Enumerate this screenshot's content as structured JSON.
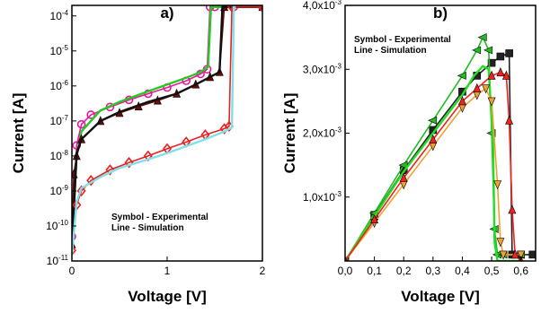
{
  "chart_data": [
    {
      "panel": "a)",
      "type": "line",
      "title": "a)",
      "xlabel": "Voltage [V]",
      "ylabel": "Current [A]",
      "xlim": [
        0,
        2
      ],
      "ylim": [
        1e-11,
        0.0002
      ],
      "yscale": "log",
      "x_ticks": [
        "0",
        "1",
        "2"
      ],
      "y_ticks": [
        {
          "v": 1e-11,
          "m": "10",
          "e": "-11"
        },
        {
          "v": 1e-10,
          "m": "10",
          "e": "-10"
        },
        {
          "v": 1e-09,
          "m": "10",
          "e": "-9"
        },
        {
          "v": 1e-08,
          "m": "10",
          "e": "-8"
        },
        {
          "v": 1e-07,
          "m": "10",
          "e": "-7"
        },
        {
          "v": 1e-06,
          "m": "10",
          "e": "-6"
        },
        {
          "v": 1e-05,
          "m": "10",
          "e": "-5"
        },
        {
          "v": 0.0001,
          "m": "10",
          "e": "-4"
        }
      ],
      "annotation": [
        "Symbol - Experimental",
        "Line - Simulation"
      ],
      "series": [
        {
          "color": "#e8189b",
          "marker": "circle",
          "x": [
            0.0,
            0.05,
            0.1,
            0.2,
            0.4,
            0.6,
            0.8,
            1.0,
            1.2,
            1.35,
            1.42,
            1.45,
            1.5,
            1.7,
            2.0
          ],
          "y": [
            5e-11,
            2e-08,
            8e-08,
            1.5e-07,
            2.5e-07,
            4e-07,
            6e-07,
            9e-07,
            1.4e-06,
            2.2e-06,
            3e-06,
            0.00018,
            0.00018,
            0.00018,
            0.00018
          ]
        },
        {
          "color": "#22cc22",
          "marker": "none",
          "x": [
            0.0,
            0.05,
            0.1,
            0.3,
            0.5,
            0.8,
            1.0,
            1.2,
            1.35,
            1.43,
            1.46,
            1.5,
            2.0
          ],
          "y": [
            3e-11,
            1e-08,
            5e-08,
            2e-07,
            3.5e-07,
            7e-07,
            1.1e-06,
            1.7e-06,
            2.5e-06,
            3.5e-06,
            0.00018,
            0.00018,
            0.00018
          ]
        },
        {
          "color": "#6b0a0a",
          "marker": "triangle",
          "x": [
            0.0,
            0.02,
            0.05,
            0.1,
            0.3,
            0.5,
            0.7,
            0.9,
            1.1,
            1.3,
            1.45,
            1.55,
            1.6,
            2.0
          ],
          "y": [
            3e-11,
            3e-09,
            1e-08,
            3e-08,
            1e-07,
            1.7e-07,
            2.6e-07,
            3.8e-07,
            6e-07,
            1.1e-06,
            1.8e-06,
            2.5e-06,
            0.00018,
            0.00018
          ]
        },
        {
          "color": "#111111",
          "marker": "none",
          "x": [
            0.0,
            0.05,
            0.1,
            0.3,
            0.5,
            0.8,
            1.1,
            1.3,
            1.45,
            1.55,
            1.58,
            2.0
          ],
          "y": [
            2e-11,
            1.2e-08,
            3e-08,
            1e-07,
            1.8e-07,
            3.5e-07,
            6e-07,
            1.1e-06,
            1.8e-06,
            2.5e-06,
            0.00018,
            0.00018
          ]
        },
        {
          "color": "#e8211f",
          "marker": "diamond",
          "x": [
            0.0,
            0.05,
            0.1,
            0.2,
            0.4,
            0.6,
            0.8,
            1.0,
            1.2,
            1.4,
            1.6,
            1.65,
            1.68,
            2.0
          ],
          "y": [
            2e-11,
            4e-10,
            1e-09,
            2e-09,
            4e-09,
            6.5e-09,
            1e-08,
            1.6e-08,
            2.5e-08,
            4e-08,
            6e-08,
            7e-08,
            0.00018,
            0.00018
          ]
        },
        {
          "color": "#7fe0ea",
          "marker": "none",
          "x": [
            0.0,
            0.05,
            0.1,
            0.3,
            0.5,
            0.8,
            1.0,
            1.2,
            1.4,
            1.6,
            1.68,
            1.7,
            1.72
          ],
          "y": [
            1.5e-11,
            5e-10,
            1.2e-09,
            2.5e-09,
            4.5e-09,
            8e-09,
            1.2e-08,
            1.9e-08,
            3e-08,
            5e-08,
            6.5e-08,
            0.00018,
            0.00018
          ]
        }
      ]
    },
    {
      "panel": "b)",
      "type": "line",
      "title": "b)",
      "xlabel": "Voltage [V]",
      "ylabel": "Current [A]",
      "xlim": [
        0,
        0.65
      ],
      "ylim": [
        0,
        0.004
      ],
      "x_ticks": [
        "0,0",
        "0,1",
        "0,2",
        "0,3",
        "0,4",
        "0,5",
        "0,6"
      ],
      "y_ticks": [
        {
          "v": 0.001,
          "m": "1,0x10",
          "e": "-3"
        },
        {
          "v": 0.002,
          "m": "2,0x10",
          "e": "-3"
        },
        {
          "v": 0.003,
          "m": "3,0x10",
          "e": "-3"
        },
        {
          "v": 0.004,
          "m": "4,0x10",
          "e": "-3"
        }
      ],
      "annotation": [
        "Symbol - Experimental",
        "Line - Simulation"
      ],
      "series": [
        {
          "color": "#222222",
          "marker": "square",
          "x": [
            0.0,
            0.1,
            0.2,
            0.3,
            0.4,
            0.45,
            0.5,
            0.53,
            0.56,
            0.57,
            0.6,
            0.64
          ],
          "y": [
            0.0,
            0.00072,
            0.00142,
            0.00205,
            0.00265,
            0.0029,
            0.0031,
            0.0032,
            0.00325,
            0.0001,
            0.0001,
            0.0001
          ]
        },
        {
          "color": "#22bb22",
          "marker": "triangle-left",
          "x": [
            0.0,
            0.1,
            0.2,
            0.3,
            0.4,
            0.45,
            0.47,
            0.49,
            0.5,
            0.51,
            0.52,
            0.54,
            0.6
          ],
          "y": [
            0.0,
            0.00075,
            0.0015,
            0.0022,
            0.0029,
            0.0033,
            0.0035,
            0.0033,
            0.002,
            0.0005,
            0.0001,
            0.0001,
            0.0001
          ]
        },
        {
          "color": "#22dd22",
          "marker": "none",
          "x": [
            0.0,
            0.1,
            0.2,
            0.3,
            0.4,
            0.44,
            0.47,
            0.49,
            0.505,
            0.51,
            0.52,
            0.6
          ],
          "y": [
            0.0,
            0.0007,
            0.0014,
            0.002,
            0.0026,
            0.0029,
            0.00305,
            0.003,
            0.0018,
            0.0003,
            0.0,
            0.0
          ]
        },
        {
          "color": "#f0a030",
          "marker": "triangle-down",
          "x": [
            0.0,
            0.1,
            0.2,
            0.3,
            0.4,
            0.45,
            0.48,
            0.5,
            0.52,
            0.53,
            0.54,
            0.6
          ],
          "y": [
            0.0,
            0.0006,
            0.0012,
            0.0018,
            0.0024,
            0.0026,
            0.0027,
            0.0025,
            0.0012,
            0.0003,
            0.0001,
            0.0001
          ]
        },
        {
          "color": "#ee2222",
          "marker": "triangle",
          "x": [
            0.0,
            0.1,
            0.2,
            0.3,
            0.4,
            0.45,
            0.5,
            0.53,
            0.55,
            0.56,
            0.57,
            0.58,
            0.6
          ],
          "y": [
            0.0,
            0.00065,
            0.0013,
            0.0019,
            0.0025,
            0.0027,
            0.0029,
            0.00295,
            0.0029,
            0.0022,
            0.0008,
            0.0001,
            0.0
          ]
        }
      ]
    }
  ]
}
